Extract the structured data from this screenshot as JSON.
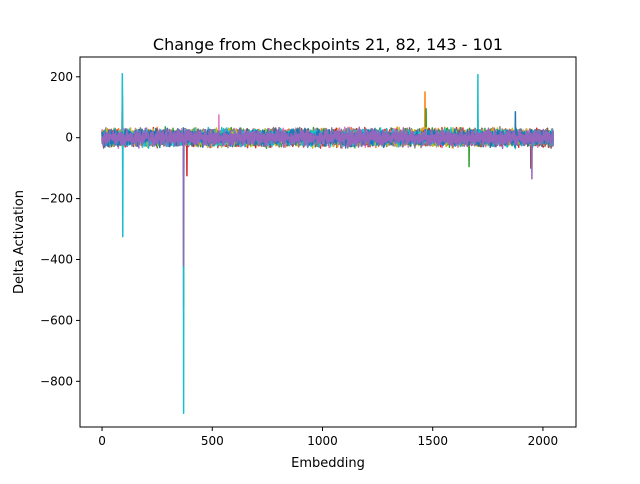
{
  "chart_data": {
    "type": "line",
    "title": "Change from Checkpoints 21, 82, 143 - 101",
    "xlabel": "Embedding",
    "ylabel": "Delta Activation",
    "xlim": [
      -100,
      2150
    ],
    "ylim": [
      -950,
      265
    ],
    "xticks": [
      0,
      500,
      1000,
      1500,
      2000
    ],
    "yticks": [
      200,
      0,
      -200,
      -400,
      -600,
      -800
    ],
    "ytick_labels": [
      "200",
      "0",
      "−200",
      "−400",
      "−600",
      "−800"
    ],
    "grid": false,
    "legend": "none",
    "n_points": 2048,
    "noise_band": [
      -50,
      50
    ],
    "series": [
      {
        "color": "#1f77b4",
        "spikes": [
          {
            "x": 1875,
            "y": 85
          },
          {
            "x": 370,
            "y": -120
          }
        ]
      },
      {
        "color": "#ff7f0e",
        "spikes": [
          {
            "x": 370,
            "y": -560
          },
          {
            "x": 1465,
            "y": 150
          }
        ]
      },
      {
        "color": "#2ca02c",
        "spikes": [
          {
            "x": 92,
            "y": 165
          },
          {
            "x": 1665,
            "y": -95
          },
          {
            "x": 1470,
            "y": 95
          }
        ]
      },
      {
        "color": "#d62728",
        "spikes": [
          {
            "x": 92,
            "y": 140
          },
          {
            "x": 385,
            "y": -125
          }
        ]
      },
      {
        "color": "#9467bd",
        "spikes": [
          {
            "x": 370,
            "y": -420
          },
          {
            "x": 1950,
            "y": -135
          }
        ]
      },
      {
        "color": "#8c564b",
        "spikes": [
          {
            "x": 1945,
            "y": -100
          }
        ]
      },
      {
        "color": "#e377c2",
        "spikes": [
          {
            "x": 530,
            "y": 75
          }
        ]
      },
      {
        "color": "#7f7f7f",
        "spikes": [
          {
            "x": 1705,
            "y": 60
          }
        ]
      },
      {
        "color": "#bcbd22",
        "spikes": [
          {
            "x": 370,
            "y": -330
          }
        ]
      },
      {
        "color": "#17becf",
        "spikes": [
          {
            "x": 92,
            "y": 210
          },
          {
            "x": 94,
            "y": -325
          },
          {
            "x": 370,
            "y": -905
          },
          {
            "x": 1705,
            "y": 207
          }
        ]
      }
    ],
    "draw_order": [
      1,
      2,
      3,
      5,
      6,
      7,
      8,
      9,
      0,
      4
    ]
  }
}
